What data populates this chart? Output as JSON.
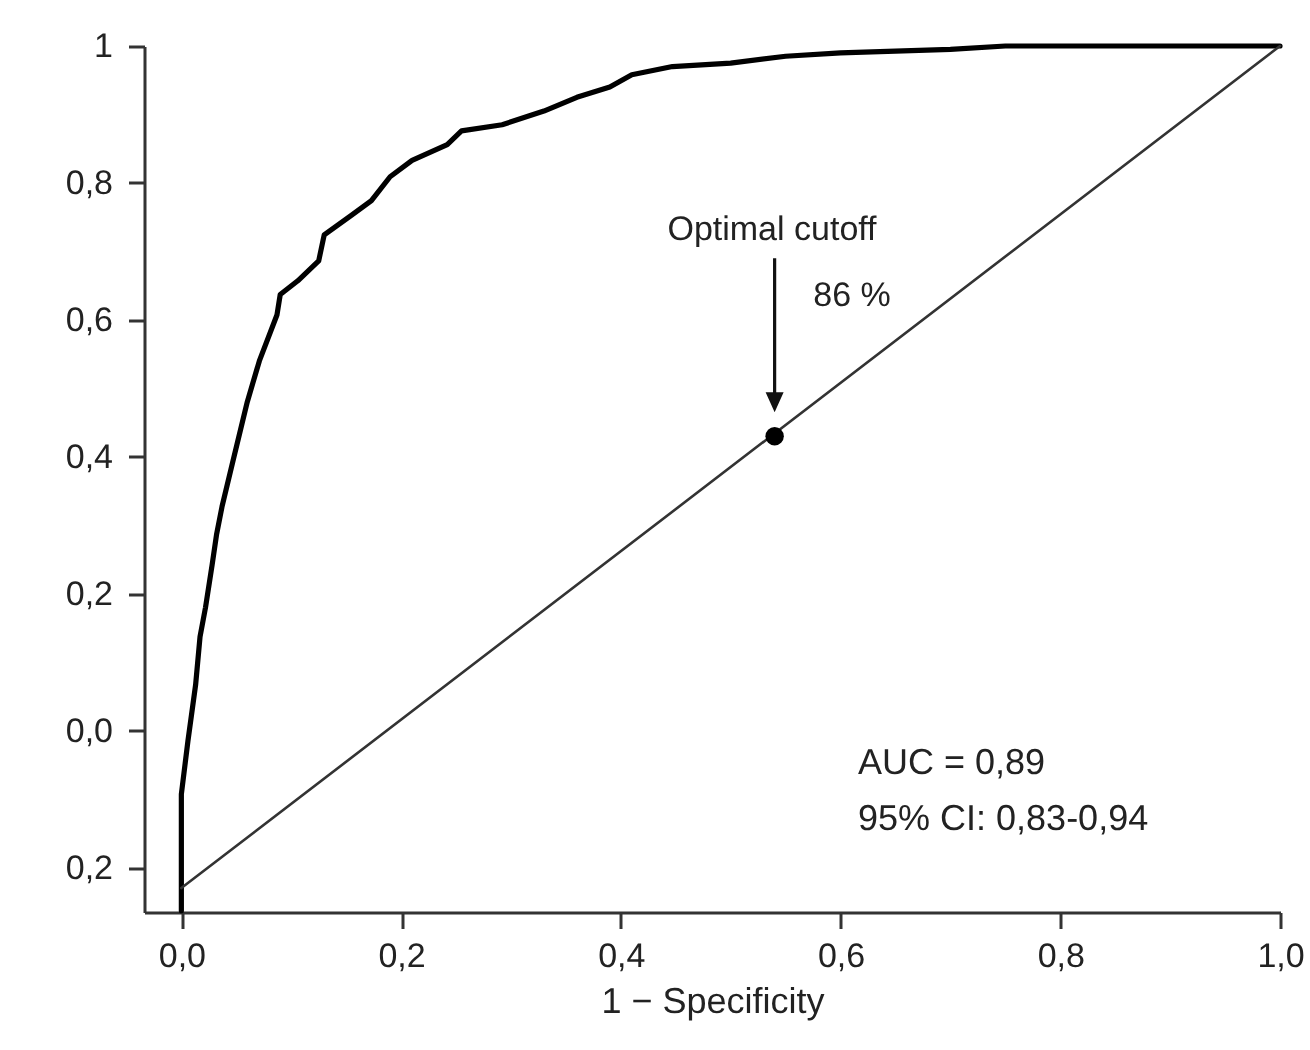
{
  "chart_data": {
    "type": "line",
    "xlabel": "1 − Specificity",
    "xlim": [
      -0.034,
      1.0
    ],
    "ylim": [
      -0.265,
      1.0
    ],
    "xticks": [
      {
        "value": 0,
        "label": "0,0"
      },
      {
        "value": 0.2,
        "label": "0,2"
      },
      {
        "value": 0.4,
        "label": "0,4"
      },
      {
        "value": 0.6,
        "label": "0,6"
      },
      {
        "value": 0.8,
        "label": "0,8"
      },
      {
        "value": 1.0,
        "label": "1,0"
      }
    ],
    "yticks": [
      {
        "value": 1,
        "label": "1"
      },
      {
        "value": 0.8,
        "label": "0,8"
      },
      {
        "value": 0.6,
        "label": "0,6"
      },
      {
        "value": 0.4,
        "label": "0,4"
      },
      {
        "value": 0.2,
        "label": "0,2"
      },
      {
        "value": 0,
        "label": "0,0"
      },
      {
        "value": -0.2,
        "label": "0,2"
      }
    ],
    "grid": false,
    "line_style": "solid",
    "series": [
      {
        "color": "#000000",
        "x": [
          0,
          0,
          0.006,
          0.013,
          0.017,
          0.022,
          0.028,
          0.032,
          0.037,
          0.047,
          0.06,
          0.071,
          0.087,
          0.09,
          0.106,
          0.125,
          0.13,
          0.155,
          0.173,
          0.19,
          0.21,
          0.242,
          0.255,
          0.292,
          0.33,
          0.36,
          0.39,
          0.41,
          0.447,
          0.5,
          0.55,
          0.6,
          0.7,
          0.75,
          1.0
        ],
        "values": [
          -0.263,
          -0.093,
          -0.015,
          0.067,
          0.137,
          0.18,
          0.242,
          0.286,
          0.327,
          0.394,
          0.48,
          0.54,
          0.607,
          0.637,
          0.657,
          0.686,
          0.724,
          0.753,
          0.774,
          0.809,
          0.833,
          0.856,
          0.876,
          0.885,
          0.905,
          0.925,
          0.94,
          0.958,
          0.97,
          0.975,
          0.985,
          0.99,
          0.995,
          1.0,
          1.0
        ]
      },
      {
        "color": "#333333",
        "x": [
          0,
          1.0
        ],
        "values": [
          -0.23,
          1.0
        ]
      },
      {
        "type": "scatter",
        "color": "#000000",
        "marker": "circle",
        "x": [
          0.54
        ],
        "values": [
          0.43
        ]
      }
    ],
    "annotations": [
      "Optimal cutoff",
      "86 %",
      "AUC = 0,89",
      "95% CI: 0,83-0,94"
    ]
  }
}
